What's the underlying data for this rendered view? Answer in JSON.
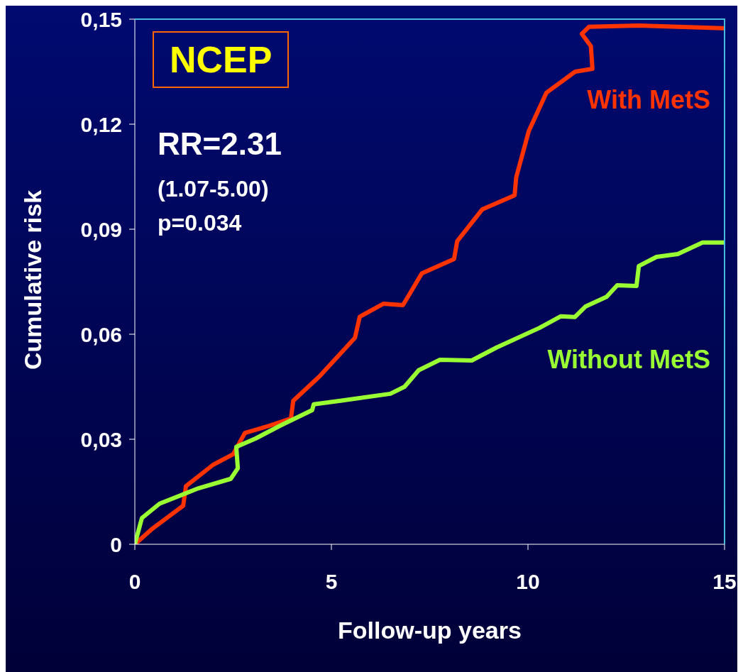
{
  "chart_data": {
    "type": "line",
    "xlabel": "Follow-up years",
    "ylabel": "Cumulative risk",
    "annotations": [
      "NCEP",
      "RR=2.31",
      "(1.07-5.00)",
      "p=0.034"
    ],
    "xlim": [
      0,
      15
    ],
    "xticks": [
      0,
      5,
      10,
      15
    ],
    "ylim": [
      0,
      0.15
    ],
    "yticks": [
      0,
      {
        "value": 0.03,
        "label": "0,03"
      },
      {
        "value": 0.06,
        "label": "0,06"
      },
      {
        "value": 0.09,
        "label": "0,09"
      },
      {
        "value": 0.12,
        "label": "0,12"
      },
      {
        "value": 0.15,
        "label": "0,15"
      }
    ],
    "grid": false,
    "marker": "none",
    "line_style": "solid",
    "series": [
      {
        "name": "With MetS",
        "color": "#ff3300",
        "x": [
          0,
          0.45,
          1.23,
          1.3,
          1.99,
          2.5,
          2.8,
          3.43,
          3.97,
          4.03,
          4.7,
          5.6,
          5.72,
          6.32,
          6.82,
          7.3,
          8.12,
          8.2,
          8.84,
          9.66,
          9.7,
          10.02,
          10.47,
          11.2,
          11.64,
          11.6,
          11.37,
          11.55,
          12.82,
          15
        ],
        "values": [
          0,
          0.0045,
          0.011,
          0.0166,
          0.0227,
          0.0257,
          0.0318,
          0.0339,
          0.0359,
          0.041,
          0.048,
          0.059,
          0.065,
          0.0687,
          0.0683,
          0.0774,
          0.0815,
          0.0866,
          0.0957,
          0.0997,
          0.1048,
          0.118,
          0.129,
          0.135,
          0.1358,
          0.1423,
          0.1458,
          0.1478,
          0.1482,
          0.1474
        ]
      },
      {
        "name": "Without MetS",
        "color": "#99ff33",
        "x": [
          0,
          0.18,
          0.63,
          1.62,
          2.44,
          2.62,
          2.58,
          3.07,
          3.7,
          4.51,
          4.55,
          5.23,
          6.5,
          6.86,
          7.22,
          7.76,
          8.57,
          9.2,
          10.29,
          10.83,
          11.19,
          11.46,
          12.0,
          12.27,
          12.76,
          12.82,
          13.27,
          13.81,
          14.44,
          15
        ],
        "values": [
          0,
          0.0075,
          0.0116,
          0.016,
          0.0187,
          0.0217,
          0.0278,
          0.0302,
          0.0339,
          0.0383,
          0.04,
          0.041,
          0.043,
          0.045,
          0.0497,
          0.0527,
          0.0525,
          0.0562,
          0.0618,
          0.0651,
          0.0649,
          0.0679,
          0.0707,
          0.074,
          0.0738,
          0.0795,
          0.0821,
          0.0829,
          0.0862,
          0.0862
        ]
      }
    ]
  }
}
